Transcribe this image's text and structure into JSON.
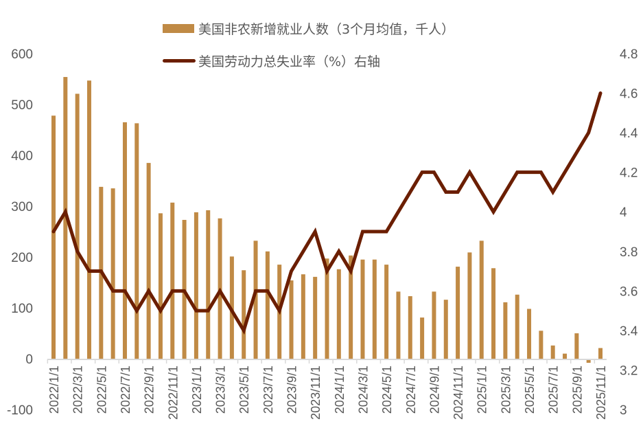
{
  "chart_data": {
    "type": "bar+line",
    "title": "",
    "legend": [
      {
        "label": "美国非农新增就业人数（3个月均值，千人）",
        "kind": "bar",
        "color": "#C08A45"
      },
      {
        "label": "美国劳动力总失业率（%）右轴",
        "kind": "line",
        "color": "#6B1E00"
      }
    ],
    "legend_position": "top-center",
    "grid": false,
    "x": [
      "2022/1/1",
      "2022/2/1",
      "2022/3/1",
      "2022/4/1",
      "2022/5/1",
      "2022/6/1",
      "2022/7/1",
      "2022/8/1",
      "2022/9/1",
      "2022/10/1",
      "2022/11/1",
      "2022/12/1",
      "2023/1/1",
      "2023/2/1",
      "2023/3/1",
      "2023/4/1",
      "2023/5/1",
      "2023/6/1",
      "2023/7/1",
      "2023/8/1",
      "2023/9/1",
      "2023/10/1",
      "2023/11/1",
      "2023/12/1",
      "2024/1/1",
      "2024/2/1",
      "2024/3/1",
      "2024/4/1",
      "2024/5/1",
      "2024/6/1",
      "2024/7/1",
      "2024/8/1",
      "2024/9/1",
      "2024/10/1",
      "2024/11/1",
      "2024/12/1",
      "2025/1/1",
      "2025/2/1",
      "2025/3/1",
      "2025/4/1",
      "2025/5/1",
      "2025/6/1",
      "2025/7/1",
      "2025/8/1",
      "2025/9/1",
      "2025/10/1",
      "2025/11/1"
    ],
    "x_tick_labels": [
      "2022/1/1",
      "2022/3/1",
      "2022/5/1",
      "2022/7/1",
      "2022/9/1",
      "2022/11/1",
      "2023/1/1",
      "2023/3/1",
      "2023/5/1",
      "2023/7/1",
      "2023/9/1",
      "2023/11/1",
      "2024/1/1",
      "2024/3/1",
      "2024/5/1",
      "2024/7/1",
      "2024/9/1",
      "2024/11/1",
      "2025/1/1",
      "2025/3/1",
      "2025/5/1",
      "2025/7/1",
      "2025/9/1",
      "2025/11/1"
    ],
    "series": [
      {
        "name": "美国非农新增就业人数（3个月均值，千人）",
        "axis": "left",
        "type": "bar",
        "color": "#C08A45",
        "values": [
          478,
          554,
          521,
          547,
          338,
          335,
          465,
          463,
          385,
          286,
          307,
          273,
          288,
          292,
          276,
          201,
          174,
          232,
          211,
          185,
          154,
          166,
          161,
          197,
          176,
          203,
          195,
          195,
          185,
          132,
          123,
          81,
          132,
          116,
          181,
          209,
          232,
          178,
          111,
          126,
          98,
          55,
          26,
          10,
          50,
          -8,
          21
        ]
      },
      {
        "name": "美国劳动力总失业率（%）右轴",
        "axis": "right",
        "type": "line",
        "color": "#6B1E00",
        "values": [
          3.9,
          4.0,
          3.8,
          3.7,
          3.7,
          3.6,
          3.6,
          3.5,
          3.6,
          3.5,
          3.6,
          3.6,
          3.5,
          3.5,
          3.6,
          3.5,
          3.4,
          3.6,
          3.6,
          3.5,
          3.7,
          3.8,
          3.9,
          3.7,
          3.8,
          3.7,
          3.9,
          3.9,
          3.9,
          4.0,
          4.1,
          4.2,
          4.2,
          4.1,
          4.1,
          4.2,
          4.1,
          4.0,
          4.1,
          4.2,
          4.2,
          4.2,
          4.1,
          4.2,
          4.3,
          4.4,
          4.6
        ]
      }
    ],
    "left_axis": {
      "ylim": [
        -100,
        600
      ],
      "ticks": [
        "-100",
        "0",
        "100",
        "200",
        "300",
        "400",
        "500",
        "600"
      ]
    },
    "right_axis": {
      "ylim": [
        3,
        4.8
      ],
      "ticks": [
        "3",
        "3.2",
        "3.4",
        "3.6",
        "3.8",
        "4",
        "4.2",
        "4.4",
        "4.6",
        "4.8"
      ]
    },
    "xlabel": "",
    "ylabel": "",
    "ylabel_right": ""
  }
}
